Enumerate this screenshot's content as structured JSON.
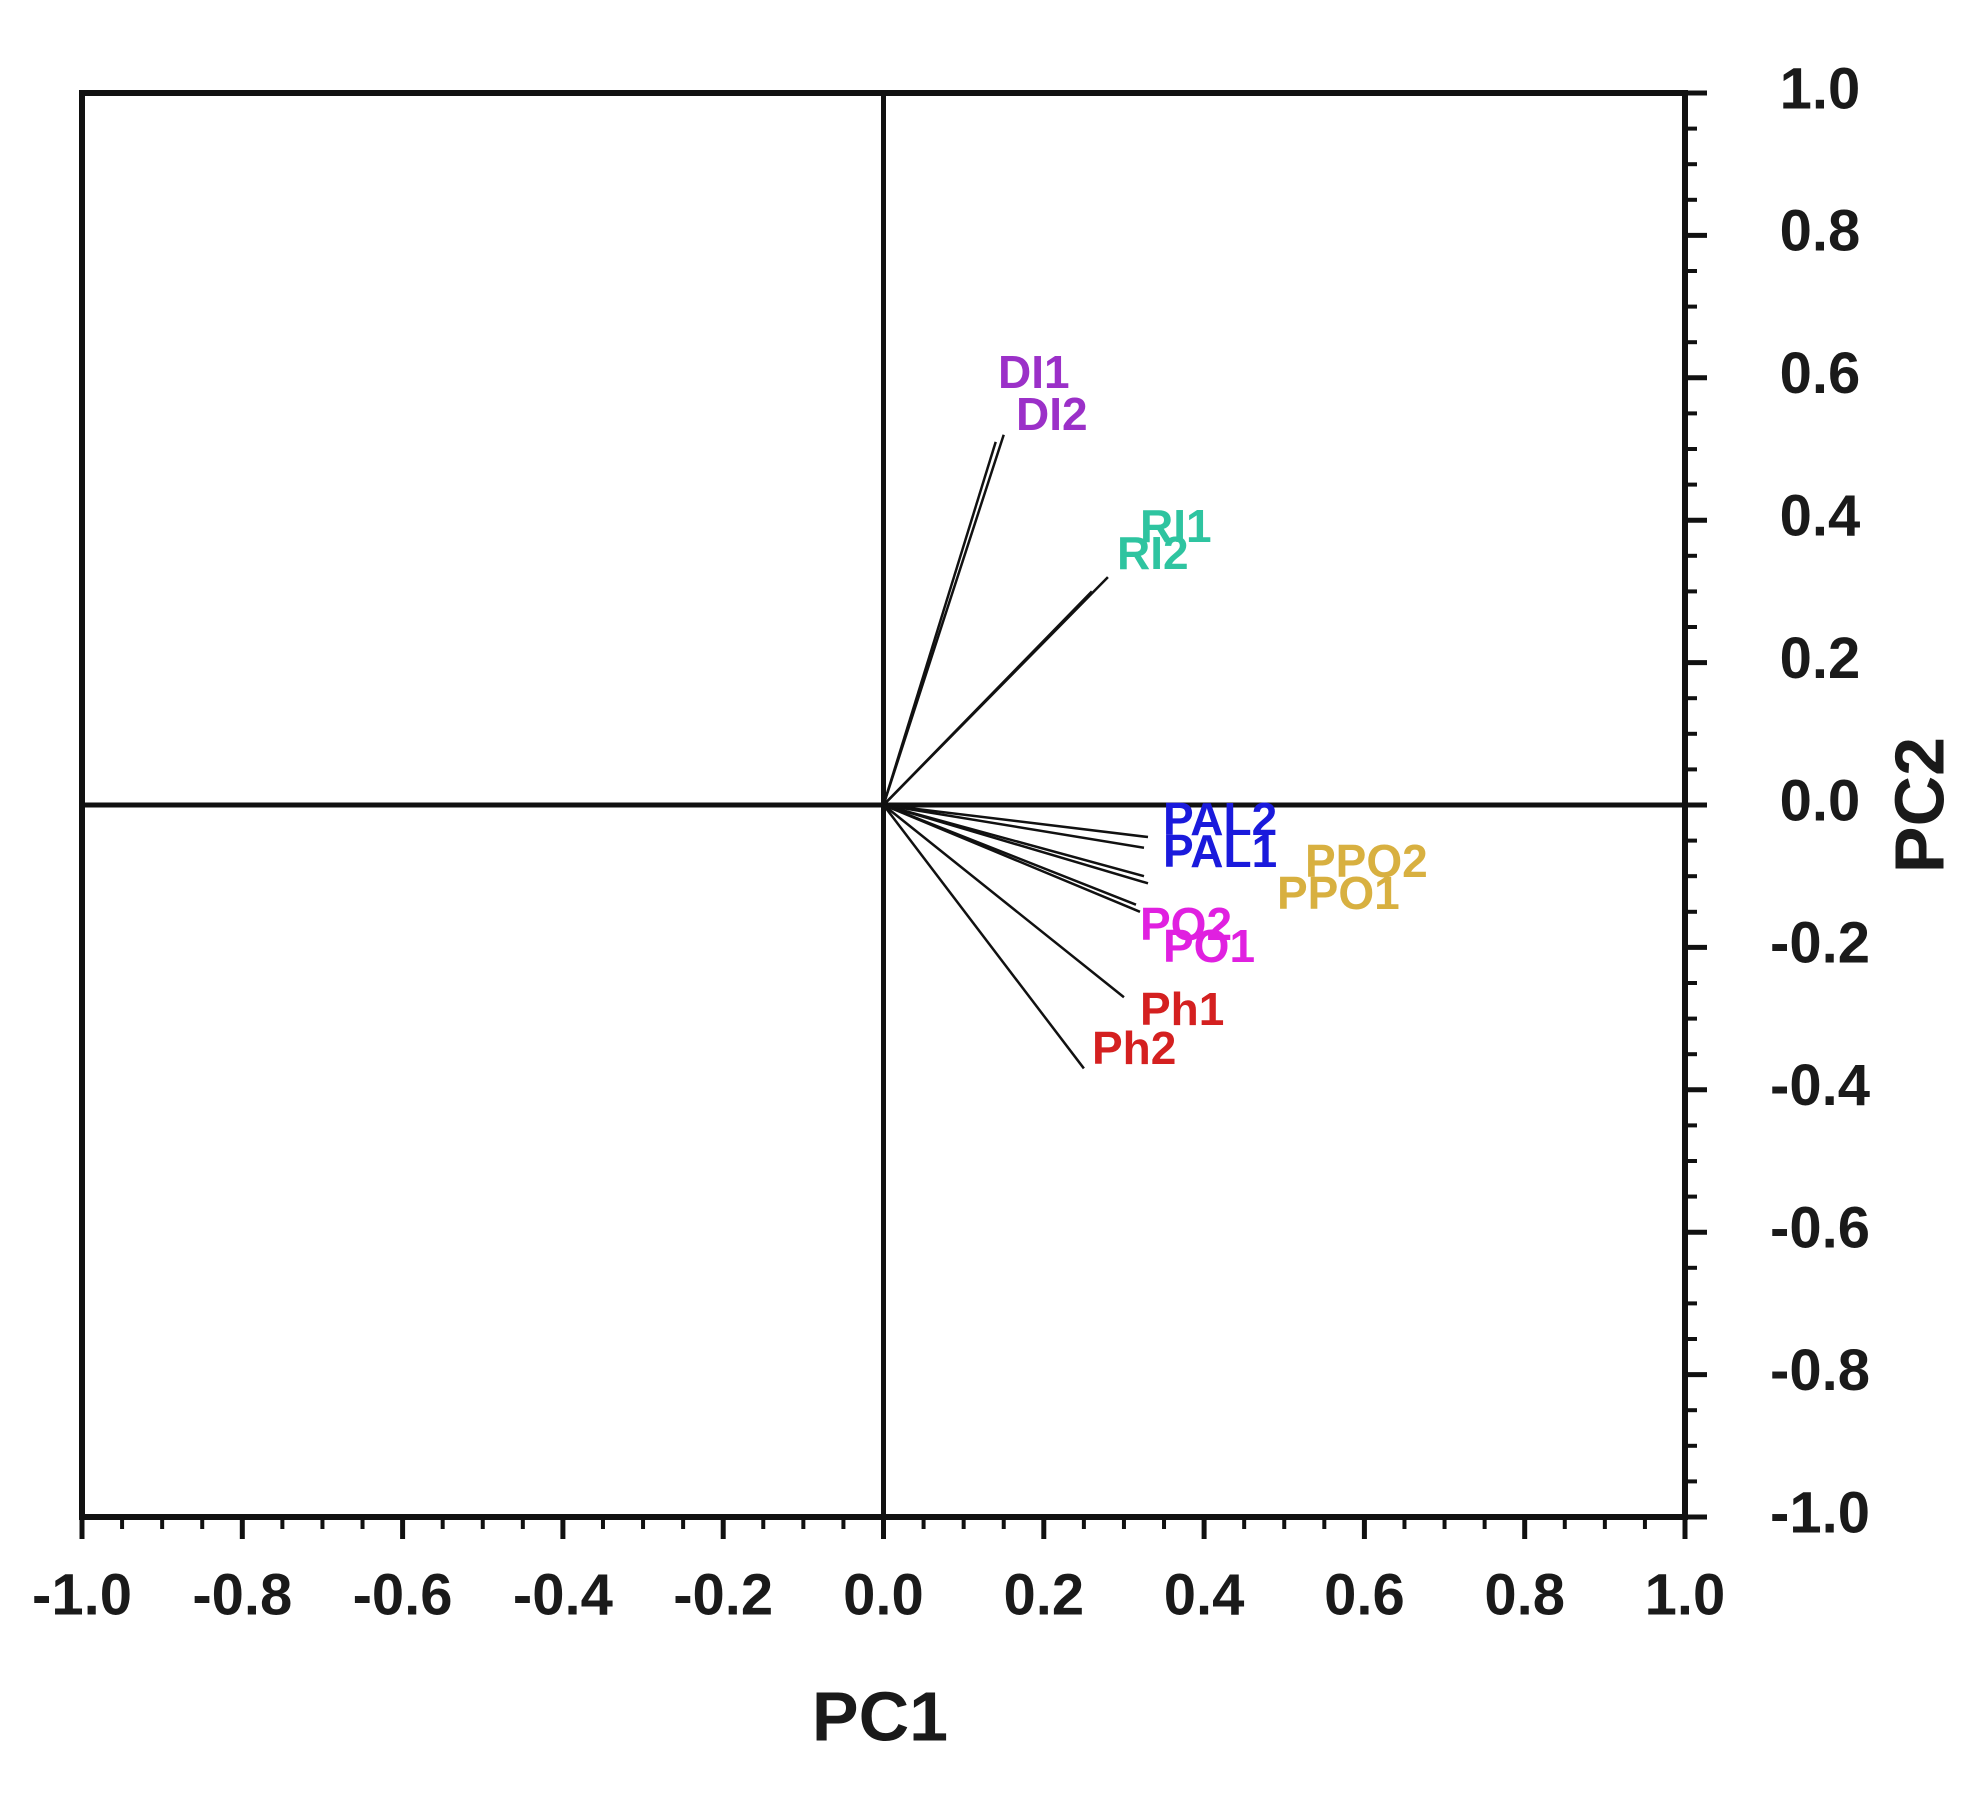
{
  "chart_data": {
    "type": "biplot",
    "x_label": "PC1",
    "y_label": "PC2",
    "labels": [
      "DI1",
      "DI2",
      "RI1",
      "RI2",
      "PAL2",
      "PAL1",
      "PPO2",
      "PPO1",
      "PO2",
      "PO1",
      "Ph1",
      "Ph2"
    ],
    "x": [
      0.15,
      0.14,
      0.28,
      0.26,
      0.33,
      0.325,
      0.325,
      0.33,
      0.315,
      0.32,
      0.3,
      0.25
    ],
    "y": [
      0.52,
      0.51,
      0.32,
      0.3,
      -0.045,
      -0.06,
      -0.1,
      -0.11,
      -0.14,
      -0.15,
      -0.27,
      -0.37
    ],
    "colors": [
      "#9b30c8",
      "#9b30c8",
      "#2ec4a0",
      "#2ec4a0",
      "#1a1adc",
      "#1a1adc",
      "#d8b040",
      "#d8b040",
      "#e020e0",
      "#e020e0",
      "#d42020",
      "#d42020"
    ],
    "xlim": [
      -1,
      1
    ],
    "ylim": [
      -1,
      1
    ],
    "xticks": [
      {
        "value": -1,
        "label": "-1.0"
      },
      -0.8,
      -0.6,
      -0.4,
      -0.2,
      {
        "value": 0,
        "label": "0.0"
      },
      0.2,
      0.4,
      0.6,
      0.8,
      {
        "value": 1,
        "label": "1.0"
      }
    ],
    "yticks": [
      {
        "value": -1,
        "label": "-1.0"
      },
      -0.8,
      -0.6,
      -0.4,
      -0.2,
      {
        "value": 0,
        "label": "0.0"
      },
      0.2,
      0.4,
      0.6,
      0.8,
      {
        "value": 1,
        "label": "1.0"
      }
    ]
  }
}
